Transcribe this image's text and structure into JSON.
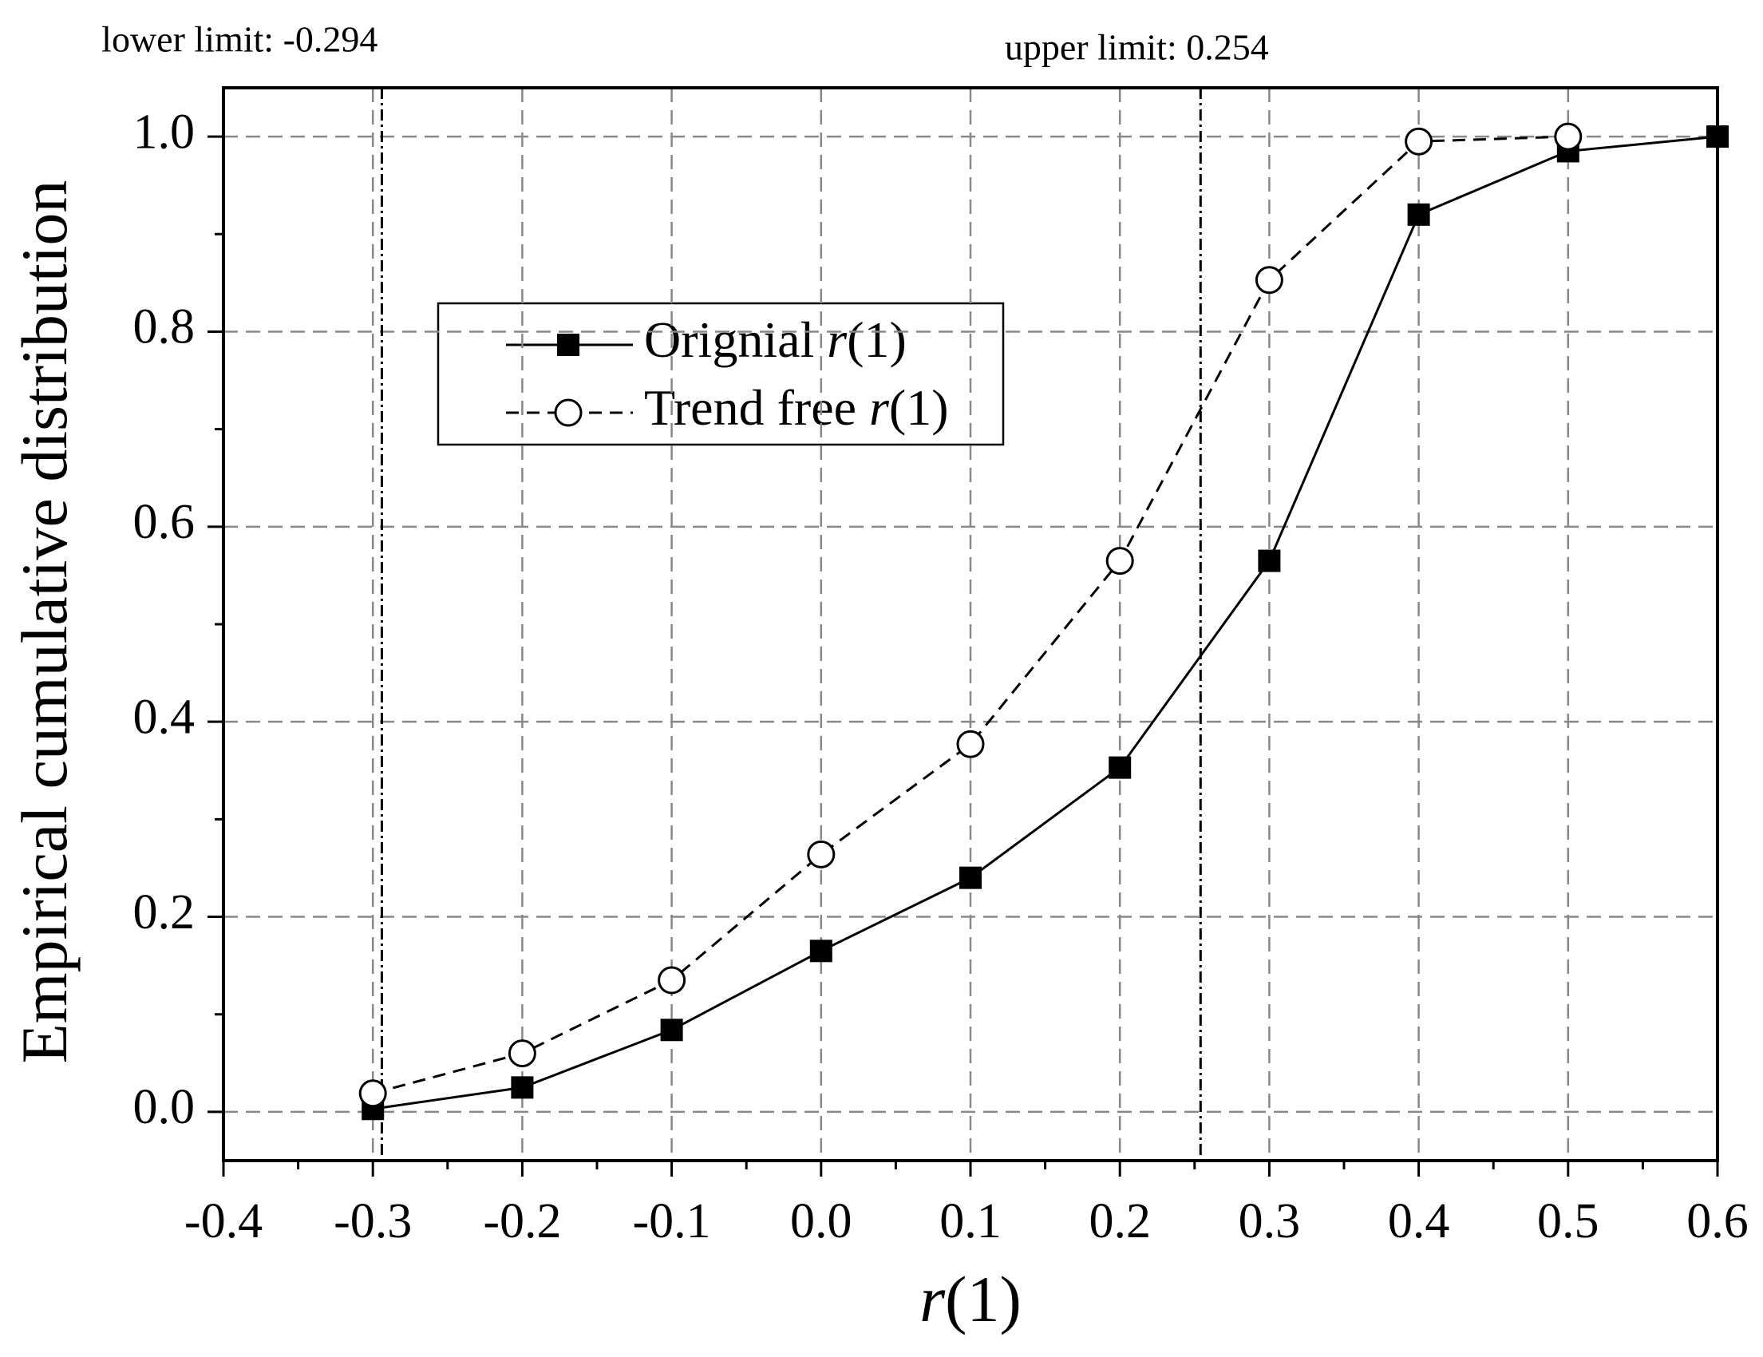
{
  "chart_data": {
    "type": "line",
    "x_label": "r(1)",
    "y_label": "Empirical cumulative distribution",
    "xlim": [
      -0.4,
      0.6
    ],
    "ylim": [
      -0.05,
      1.05
    ],
    "xticks": [
      -0.4,
      -0.3,
      -0.2,
      -0.1,
      {
        "value": 0,
        "label": "0.0"
      },
      0.1,
      0.2,
      0.3,
      0.4,
      0.5,
      0.6
    ],
    "yticks": [
      {
        "value": 0,
        "label": "0.0"
      },
      0.2,
      0.4,
      0.6,
      0.8,
      {
        "value": 1,
        "label": "1.0"
      }
    ],
    "grid": true,
    "minor_ticks": true,
    "legend": "upper left",
    "series": [
      {
        "name": "Orignial r(1)",
        "color": "#000000",
        "marker": "filled-square",
        "dash": "solid",
        "x": [
          -0.3,
          -0.2,
          -0.1,
          0,
          0.1,
          0.2,
          0.3,
          0.4,
          0.5,
          0.6
        ],
        "values": [
          0.003,
          0.025,
          0.084,
          0.165,
          0.24,
          0.353,
          0.565,
          0.92,
          0.985,
          1.0
        ]
      },
      {
        "name": "Trend free r(1)",
        "color": "#000000",
        "marker": "open-circle",
        "dash": "dashed",
        "x": [
          -0.3,
          -0.2,
          -0.1,
          0,
          0.1,
          0.2,
          0.3,
          0.4,
          0.5
        ],
        "values": [
          0.019,
          0.06,
          0.135,
          0.264,
          0.377,
          0.565,
          0.853,
          0.995,
          1.0
        ]
      }
    ],
    "vlines": [
      {
        "value": -0.294,
        "label": "lower limit: -0.294"
      },
      {
        "value": 0.254,
        "label": "upper limit: 0.254"
      }
    ]
  }
}
